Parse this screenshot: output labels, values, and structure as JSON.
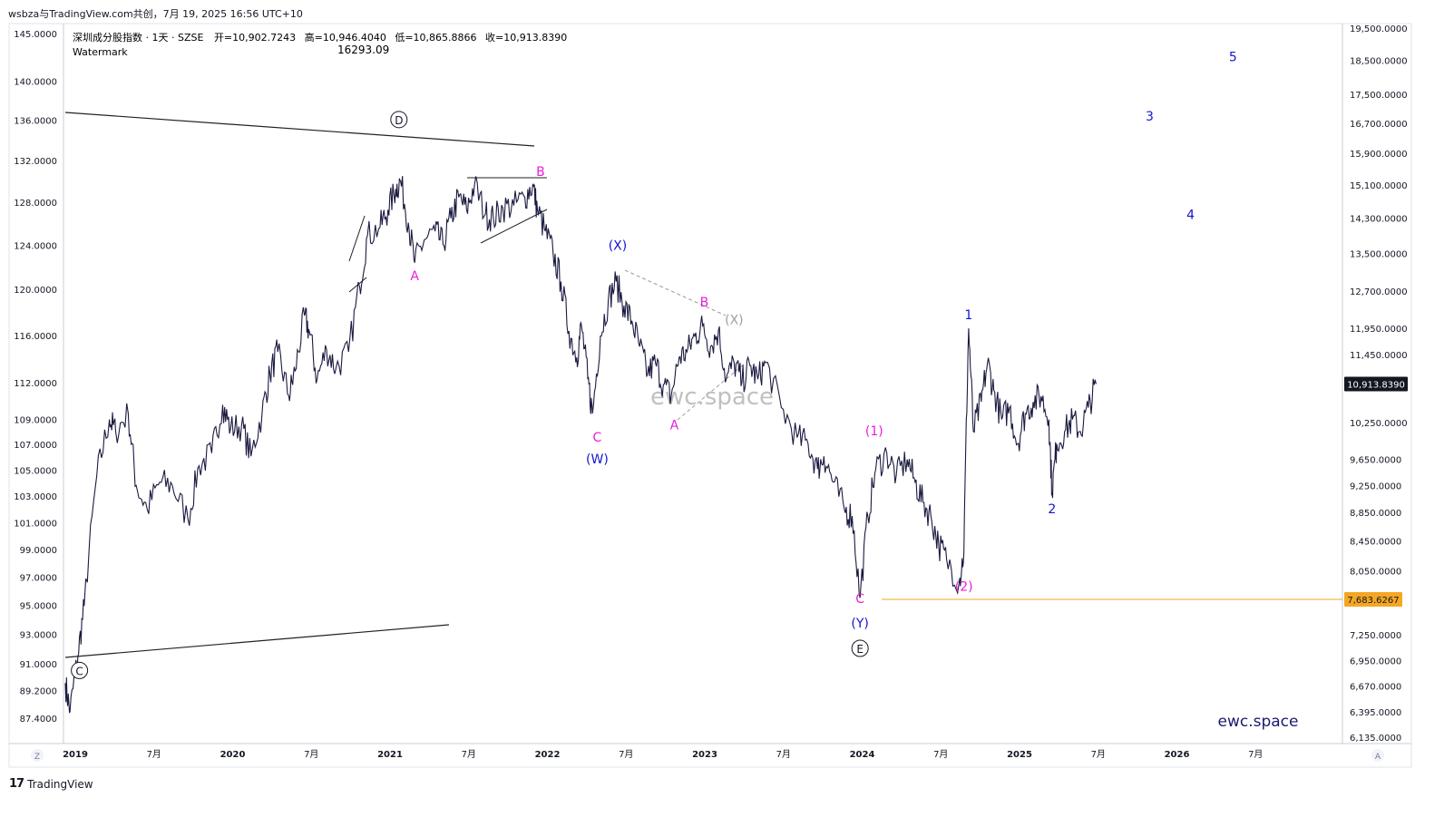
{
  "header": {
    "caption": "wsbza与TradingView.com共创，7月 19, 2025 16:56 UTC+10"
  },
  "legend": {
    "symbol": "深圳成分股指数 · 1天 · SZSE",
    "open": "开=10,902.7243",
    "high": "高=10,946.4040",
    "low": "低=10,865.8866",
    "close": "收=10,913.8390",
    "watermark_label": "Watermark",
    "watermark_value": "16293.09"
  },
  "footer": {
    "brand": "TradingView",
    "zoom_left": "Z",
    "auto_right": "A"
  },
  "chart_data": {
    "type": "line",
    "title": "深圳成分股指数 · 1天 · SZSE",
    "x_labels": [
      "2019",
      "7月",
      "2020",
      "7月",
      "2021",
      "7月",
      "2022",
      "7月",
      "2023",
      "7月",
      "2024",
      "7月",
      "2025",
      "7月",
      "2026",
      "7月"
    ],
    "left_axis": [
      "145.0000",
      "140.0000",
      "136.0000",
      "132.0000",
      "128.0000",
      "124.0000",
      "120.0000",
      "116.0000",
      "112.0000",
      "109.0000",
      "107.0000",
      "105.0000",
      "103.0000",
      "101.0000",
      "99.0000",
      "97.0000",
      "95.0000",
      "93.0000",
      "91.0000",
      "89.2000",
      "87.4000"
    ],
    "right_axis": [
      "19,500.0000",
      "18,500.0000",
      "17,500.0000",
      "16,700.0000",
      "15,900.0000",
      "15,100.0000",
      "14,300.0000",
      "13,500.0000",
      "12,700.0000",
      "11,950.0000",
      "11,450.0000",
      "10,250.0000",
      "9,650.0000",
      "9,250.0000",
      "8,850.0000",
      "8,450.0000",
      "8,050.0000",
      "7,250.0000",
      "6,950.0000",
      "6,670.0000",
      "6,395.0000",
      "6,135.0000"
    ],
    "last_price_label": "10,913.8390",
    "support_label": "7,683.6267",
    "colors": {
      "price": "#1a1a40",
      "magenta": "#e91eda",
      "blue": "#1515d0",
      "grey": "#9e9e9e",
      "orange": "#f5a623",
      "trend": "#222222"
    },
    "series": [
      {
        "values": [
          [
            2019.0,
            6700
          ],
          [
            2019.03,
            6400
          ],
          [
            2019.08,
            7000
          ],
          [
            2019.12,
            7600
          ],
          [
            2019.2,
            9400
          ],
          [
            2019.28,
            10300
          ],
          [
            2019.32,
            10100
          ],
          [
            2019.4,
            10400
          ],
          [
            2019.45,
            9250
          ],
          [
            2019.52,
            8900
          ],
          [
            2019.6,
            9300
          ],
          [
            2019.68,
            9250
          ],
          [
            2019.78,
            8750
          ],
          [
            2019.85,
            9550
          ],
          [
            2019.93,
            9750
          ],
          [
            2020.0,
            10550
          ],
          [
            2020.05,
            10150
          ],
          [
            2020.12,
            10200
          ],
          [
            2020.18,
            9700
          ],
          [
            2020.25,
            10400
          ],
          [
            2020.3,
            11100
          ],
          [
            2020.35,
            11500
          ],
          [
            2020.42,
            10700
          ],
          [
            2020.46,
            11150
          ],
          [
            2020.52,
            12200
          ],
          [
            2020.55,
            11900
          ],
          [
            2020.6,
            11000
          ],
          [
            2020.66,
            11550
          ],
          [
            2020.72,
            11200
          ],
          [
            2020.8,
            11500
          ],
          [
            2020.87,
            12800
          ],
          [
            2020.92,
            13900
          ],
          [
            2021.0,
            14100
          ],
          [
            2021.05,
            14500
          ],
          [
            2021.1,
            15000
          ],
          [
            2021.13,
            15200
          ],
          [
            2021.18,
            14200
          ],
          [
            2021.22,
            13300
          ],
          [
            2021.28,
            13800
          ],
          [
            2021.35,
            14000
          ],
          [
            2021.4,
            13700
          ],
          [
            2021.45,
            14300
          ],
          [
            2021.5,
            14800
          ],
          [
            2021.55,
            14500
          ],
          [
            2021.6,
            15100
          ],
          [
            2021.67,
            14400
          ],
          [
            2021.72,
            14300
          ],
          [
            2021.78,
            14550
          ],
          [
            2021.85,
            14600
          ],
          [
            2021.92,
            14800
          ],
          [
            2021.97,
            15100
          ],
          [
            2022.0,
            14500
          ],
          [
            2022.05,
            14000
          ],
          [
            2022.1,
            13500
          ],
          [
            2022.15,
            12900
          ],
          [
            2022.2,
            11900
          ],
          [
            2022.25,
            11400
          ],
          [
            2022.28,
            12000
          ],
          [
            2022.32,
            11000
          ],
          [
            2022.35,
            10400
          ],
          [
            2022.4,
            11800
          ],
          [
            2022.45,
            12500
          ],
          [
            2022.5,
            12900
          ],
          [
            2022.55,
            12400
          ],
          [
            2022.6,
            12100
          ],
          [
            2022.65,
            11600
          ],
          [
            2022.7,
            11100
          ],
          [
            2022.75,
            11300
          ],
          [
            2022.8,
            10900
          ],
          [
            2022.85,
            10700
          ],
          [
            2022.9,
            11400
          ],
          [
            2022.95,
            11500
          ],
          [
            2023.0,
            11800
          ],
          [
            2023.05,
            12000
          ],
          [
            2023.1,
            11600
          ],
          [
            2023.15,
            11900
          ],
          [
            2023.2,
            11000
          ],
          [
            2023.25,
            11300
          ],
          [
            2023.3,
            10950
          ],
          [
            2023.35,
            11250
          ],
          [
            2023.4,
            11000
          ],
          [
            2023.45,
            11300
          ],
          [
            2023.55,
            10500
          ],
          [
            2023.65,
            10000
          ],
          [
            2023.72,
            9900
          ],
          [
            2023.78,
            9500
          ],
          [
            2023.82,
            9700
          ],
          [
            2023.88,
            9300
          ],
          [
            2023.95,
            8900
          ],
          [
            2024.0,
            8800
          ],
          [
            2024.05,
            7700
          ],
          [
            2024.1,
            8800
          ],
          [
            2024.15,
            9500
          ],
          [
            2024.22,
            9750
          ],
          [
            2024.28,
            9400
          ],
          [
            2024.35,
            9650
          ],
          [
            2024.4,
            9300
          ],
          [
            2024.45,
            9000
          ],
          [
            2024.5,
            8800
          ],
          [
            2024.55,
            8400
          ],
          [
            2024.6,
            8200
          ],
          [
            2024.68,
            7900
          ],
          [
            2024.71,
            8300
          ],
          [
            2024.74,
            11950
          ],
          [
            2024.77,
            10100
          ],
          [
            2024.82,
            10600
          ],
          [
            2024.86,
            11300
          ],
          [
            2024.9,
            10800
          ],
          [
            2024.95,
            10300
          ],
          [
            2025.0,
            10500
          ],
          [
            2025.05,
            9900
          ],
          [
            2025.1,
            10400
          ],
          [
            2025.15,
            10600
          ],
          [
            2025.2,
            10700
          ],
          [
            2025.25,
            10300
          ],
          [
            2025.27,
            9150
          ],
          [
            2025.3,
            9900
          ],
          [
            2025.35,
            10100
          ],
          [
            2025.4,
            10300
          ],
          [
            2025.45,
            10100
          ],
          [
            2025.5,
            10500
          ],
          [
            2025.55,
            10913
          ]
        ]
      }
    ],
    "waves": [
      {
        "text": "D",
        "x": 2021.12,
        "y": 16700,
        "circle": true,
        "color": "#131722"
      },
      {
        "text": "C",
        "x": 2019.09,
        "y": 6800,
        "circle": true,
        "color": "#131722"
      },
      {
        "text": "E",
        "x": 2024.05,
        "y": 7050,
        "circle": true,
        "color": "#131722"
      },
      {
        "text": "A",
        "x": 2021.22,
        "y": 12950,
        "color": "#e91eda"
      },
      {
        "text": "B",
        "x": 2022.02,
        "y": 15350,
        "color": "#e91eda"
      },
      {
        "text": "(X)",
        "x": 2022.51,
        "y": 13600,
        "color": "#1515d0"
      },
      {
        "text": "C",
        "x": 2022.38,
        "y": 9950,
        "color": "#e91eda"
      },
      {
        "text": "(W)",
        "x": 2022.38,
        "y": 9600,
        "color": "#1515d0"
      },
      {
        "text": "B",
        "x": 2023.06,
        "y": 12400,
        "color": "#e91eda"
      },
      {
        "text": "(X)",
        "x": 2023.25,
        "y": 12050,
        "color": "#9e9e9e"
      },
      {
        "text": "A",
        "x": 2022.87,
        "y": 10150,
        "color": "#e91eda"
      },
      {
        "text": "(1)",
        "x": 2024.14,
        "y": 10050,
        "color": "#e91eda"
      },
      {
        "text": "C",
        "x": 2024.05,
        "y": 7650,
        "color": "#e91eda"
      },
      {
        "text": "(Y)",
        "x": 2024.05,
        "y": 7350,
        "color": "#1515d0"
      },
      {
        "text": "(2)",
        "x": 2024.71,
        "y": 7800,
        "color": "#e91eda"
      },
      {
        "text": "1",
        "x": 2024.74,
        "y": 12150,
        "color": "#1515d0"
      },
      {
        "text": "2",
        "x": 2025.27,
        "y": 8850,
        "color": "#1515d0"
      },
      {
        "text": "3",
        "x": 2025.89,
        "y": 16800,
        "color": "#1515d0"
      },
      {
        "text": "4",
        "x": 2026.15,
        "y": 14300,
        "color": "#1515d0"
      },
      {
        "text": "5",
        "x": 2026.42,
        "y": 18500,
        "color": "#1515d0"
      }
    ],
    "watermark_center": "ewc.space",
    "watermark_corner": "ewc.space"
  }
}
